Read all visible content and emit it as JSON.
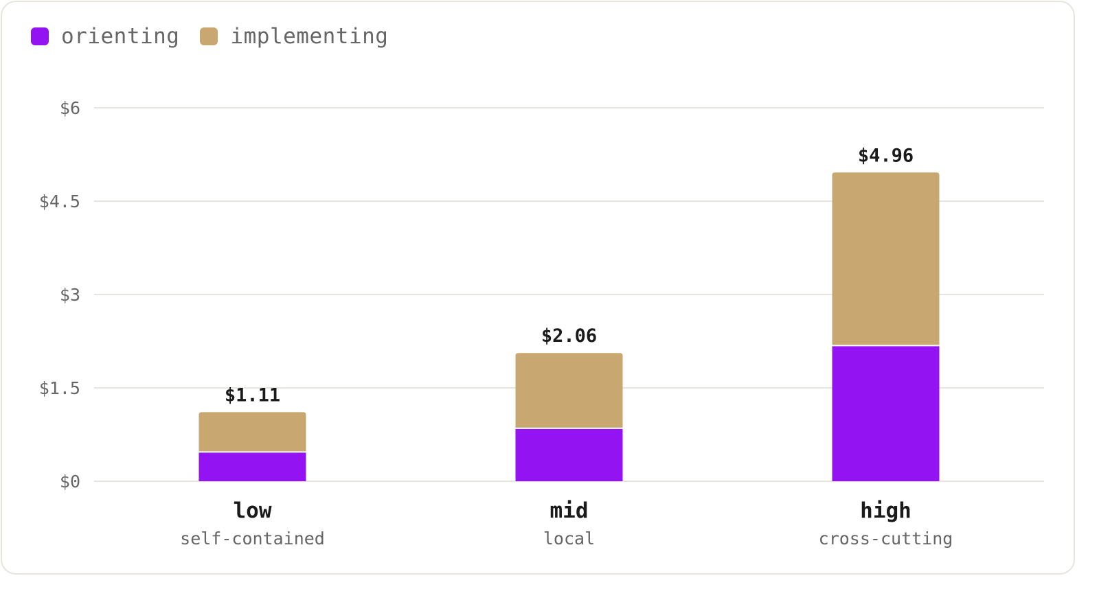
{
  "legend": {
    "items": [
      {
        "label": "orienting",
        "color": "#9413f2"
      },
      {
        "label": "implementing",
        "color": "#c9a770"
      }
    ]
  },
  "chart_data": {
    "type": "bar",
    "stacked": true,
    "categories": [
      "low",
      "mid",
      "high"
    ],
    "category_subtitles": [
      "self-contained",
      "local",
      "cross-cutting"
    ],
    "series": [
      {
        "name": "orienting",
        "values": [
          0.47,
          0.85,
          2.18
        ],
        "color": "#9413f2"
      },
      {
        "name": "implementing",
        "values": [
          0.64,
          1.21,
          2.78
        ],
        "color": "#c9a770"
      }
    ],
    "totals": [
      1.11,
      2.06,
      4.96
    ],
    "total_labels": [
      "$1.11",
      "$2.06",
      "$4.96"
    ],
    "yticks": [
      0,
      1.5,
      3,
      4.5,
      6
    ],
    "ytick_labels": [
      "$0",
      "$1.5",
      "$3",
      "$4.5",
      "$6"
    ],
    "ylim": [
      0,
      6
    ],
    "grid": true,
    "legend_position": "top-left"
  }
}
